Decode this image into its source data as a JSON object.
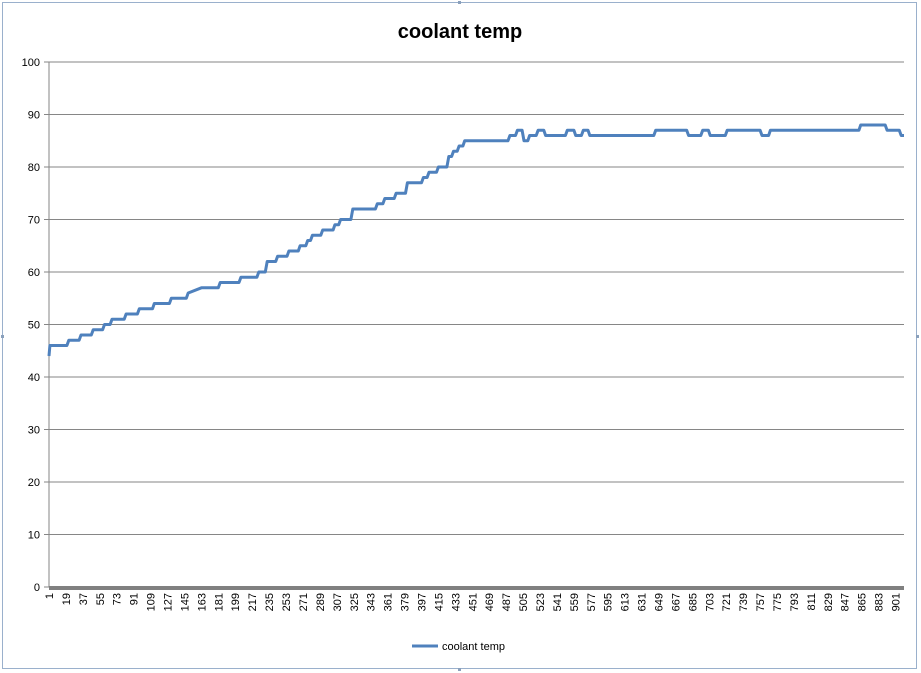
{
  "chart_data": {
    "type": "line",
    "title": "coolant temp",
    "xlabel": "",
    "ylabel": "",
    "ylim": [
      0,
      100
    ],
    "yticks": [
      0,
      10,
      20,
      30,
      40,
      50,
      60,
      70,
      80,
      90,
      100
    ],
    "xlim": [
      1,
      910
    ],
    "xticks": [
      1,
      19,
      37,
      55,
      73,
      91,
      109,
      127,
      145,
      163,
      181,
      199,
      217,
      235,
      253,
      271,
      289,
      307,
      325,
      343,
      361,
      379,
      397,
      415,
      433,
      451,
      469,
      487,
      505,
      523,
      541,
      559,
      577,
      595,
      613,
      631,
      649,
      667,
      685,
      703,
      721,
      739,
      757,
      775,
      793,
      811,
      829,
      847,
      865,
      883,
      901
    ],
    "grid": "horizontal",
    "legend": "bottom",
    "color": "#4f81bd",
    "series": [
      {
        "name": "coolant temp",
        "x": [
          1,
          2,
          20,
          22,
          33,
          35,
          46,
          48,
          58,
          60,
          66,
          68,
          81,
          83,
          95,
          97,
          111,
          113,
          129,
          131,
          147,
          149,
          163,
          165,
          181,
          183,
          203,
          205,
          222,
          224,
          231,
          233,
          242,
          244,
          254,
          256,
          266,
          268,
          274,
          276,
          279,
          281,
          290,
          292,
          303,
          305,
          309,
          311,
          322,
          324,
          348,
          350,
          356,
          358,
          368,
          370,
          380,
          382,
          397,
          399,
          403,
          405,
          413,
          415,
          424,
          426,
          429,
          431,
          435,
          437,
          441,
          443,
          489,
          491,
          497,
          499,
          504,
          506,
          510,
          512,
          519,
          521,
          527,
          529,
          550,
          552,
          559,
          561,
          567,
          569,
          574,
          576,
          644,
          646,
          652,
          654,
          679,
          681,
          694,
          696,
          702,
          704,
          720,
          722,
          757,
          759,
          766,
          768,
          862,
          864,
          890,
          892,
          905,
          907,
          910
        ],
        "values": [
          44,
          46,
          46,
          47,
          47,
          48,
          48,
          49,
          49,
          50,
          50,
          51,
          51,
          52,
          52,
          53,
          53,
          54,
          54,
          55,
          55,
          56,
          57,
          57,
          57,
          58,
          58,
          59,
          59,
          60,
          60,
          62,
          62,
          63,
          63,
          64,
          64,
          65,
          65,
          66,
          66,
          67,
          67,
          68,
          68,
          69,
          69,
          70,
          70,
          72,
          72,
          73,
          73,
          74,
          74,
          75,
          75,
          77,
          77,
          78,
          78,
          79,
          79,
          80,
          80,
          82,
          82,
          83,
          83,
          84,
          84,
          85,
          85,
          86,
          86,
          87,
          87,
          85,
          85,
          86,
          86,
          87,
          87,
          86,
          86,
          87,
          87,
          86,
          86,
          87,
          87,
          86,
          86,
          87,
          87,
          87,
          87,
          86,
          86,
          87,
          87,
          86,
          86,
          87,
          87,
          86,
          86,
          87,
          87,
          88,
          88,
          87,
          87,
          86,
          86
        ]
      }
    ]
  }
}
